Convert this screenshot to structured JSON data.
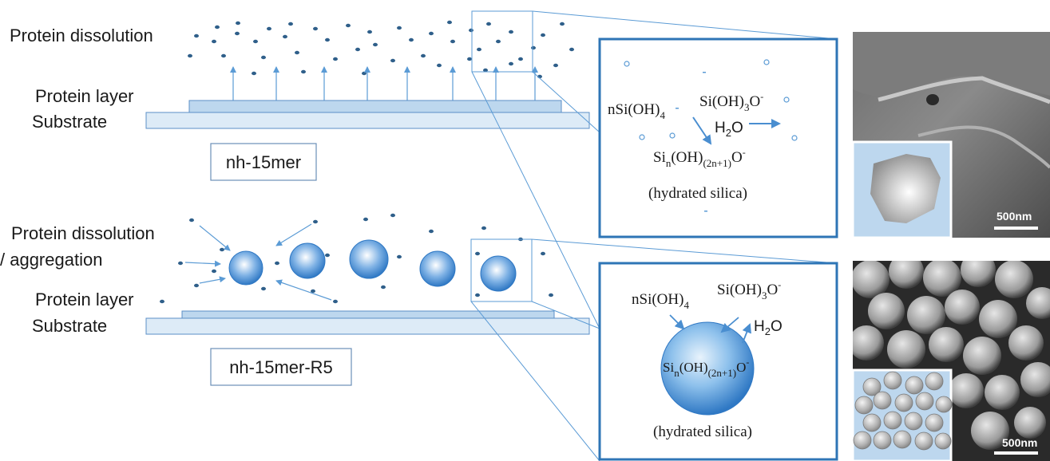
{
  "top_panel": {
    "dissolution_label": "Protein dissolution",
    "protein_layer_label": "Protein layer",
    "substrate_label": "Substrate",
    "sample_tag": "nh-15mer",
    "inset": {
      "reactant": "nSi(OH)",
      "reactant_sub": "4",
      "ion": "Si(OH)",
      "ion_sub": "3",
      "ion_tail": "O",
      "ion_sup": "-",
      "water": "H",
      "water_sub": "2",
      "water_tail": "O",
      "product": "Si",
      "product_sub_n": "n",
      "product_mid": "(OH)",
      "product_sub": "(2n+1)",
      "product_tail": "O",
      "product_sup": "-",
      "caption": "(hydrated silica)"
    },
    "sem_scale": "500nm"
  },
  "bottom_panel": {
    "dissolution_label_1": "Protein dissolution",
    "dissolution_label_2": "/ aggregation",
    "protein_layer_label": "Protein layer",
    "substrate_label": "Substrate",
    "sample_tag": "nh-15mer-R5",
    "inset": {
      "reactant": "nSi(OH)",
      "reactant_sub": "4",
      "ion": "Si(OH)",
      "ion_sub": "3",
      "ion_tail": "O",
      "ion_sup": "-",
      "water": "H",
      "water_sub": "2",
      "water_tail": "O",
      "product": "Si",
      "product_sub_n": "n",
      "product_mid": "(OH)",
      "product_sub": "(2n+1)",
      "product_tail": "O",
      "product_sup": "-",
      "caption": "(hydrated silica)"
    },
    "sem_scale": "500nm"
  },
  "colors": {
    "layer_fill": "#bdd7ee",
    "substrate_fill": "#ddebf7",
    "accent": "#2e75b6",
    "dot": "#2f5f8a",
    "arrow": "#5b9bd5"
  }
}
